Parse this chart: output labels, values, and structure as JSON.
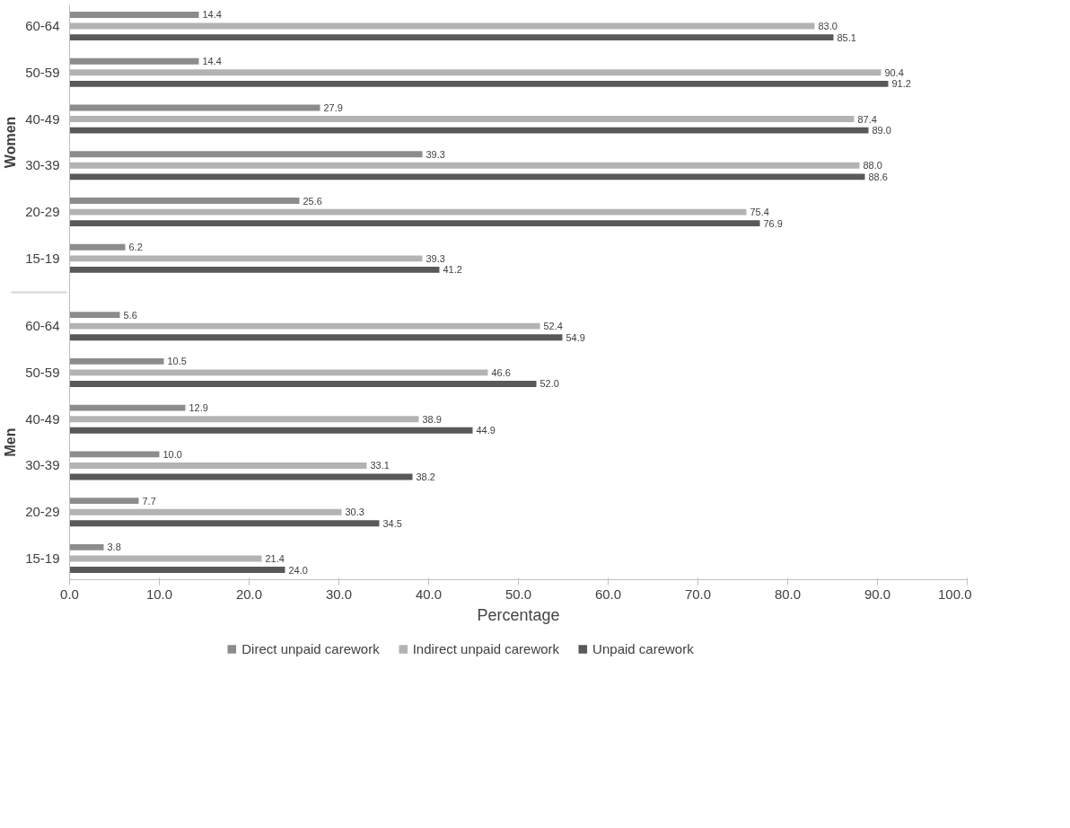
{
  "chart_data": {
    "type": "bar",
    "orientation": "horizontal",
    "xlabel": "Percentage",
    "categories": [
      "60-64",
      "50-59",
      "40-49",
      "30-39",
      "20-29",
      "15-19",
      "60-64",
      "50-59",
      "40-49",
      "30-39",
      "20-29",
      "15-19"
    ],
    "annotations": [
      "Women",
      "Men"
    ],
    "series": [
      {
        "name": "Direct unpaid carework",
        "color": "#8c8c8c",
        "values": [
          14.4,
          14.4,
          27.9,
          39.3,
          25.6,
          6.2,
          5.6,
          10.5,
          12.9,
          10.0,
          7.7,
          3.8
        ],
        "value_labels": [
          "14.4",
          "14.4",
          "27.9",
          "39.3",
          "25.6",
          "6.2",
          "5.6",
          "10.5",
          "12.9",
          "10.0",
          "7.7",
          "3.8"
        ]
      },
      {
        "name": "Indirect unpaid carework",
        "color": "#b3b3b3",
        "values": [
          83.0,
          90.4,
          87.4,
          88.0,
          75.4,
          39.3,
          52.4,
          46.6,
          38.9,
          33.1,
          30.3,
          21.4
        ],
        "value_labels": [
          "83.0",
          "90.4",
          "87.4",
          "88.0",
          "75.4",
          "39.3",
          "52.4",
          "46.6",
          "38.9",
          "33.1",
          "30.3",
          "21.4"
        ]
      },
      {
        "name": "Unpaid carework",
        "color": "#595959",
        "values": [
          85.1,
          91.2,
          89.0,
          88.6,
          76.9,
          41.2,
          54.9,
          52.0,
          44.9,
          38.2,
          34.5,
          24.0
        ],
        "value_labels": [
          "85.1",
          "91.2",
          "89.0",
          "88.6",
          "76.9",
          "41.2",
          "54.9",
          "52.0",
          "44.9",
          "38.2",
          "34.5",
          "24.0"
        ]
      }
    ],
    "xlim": [
      0,
      100
    ],
    "xticks": [
      {
        "value": 0,
        "label": "0.0"
      },
      {
        "value": 10,
        "label": "10.0"
      },
      {
        "value": 20,
        "label": "20.0"
      },
      {
        "value": 30,
        "label": "30.0"
      },
      {
        "value": 40,
        "label": "40.0"
      },
      {
        "value": 50,
        "label": "50.0"
      },
      {
        "value": 60,
        "label": "60.0"
      },
      {
        "value": 70,
        "label": "70.0"
      },
      {
        "value": 80,
        "label": "80.0"
      },
      {
        "value": 90,
        "label": "90.0"
      },
      {
        "value": 100,
        "label": "100.0"
      }
    ],
    "legend": "bottom",
    "grid": false
  }
}
